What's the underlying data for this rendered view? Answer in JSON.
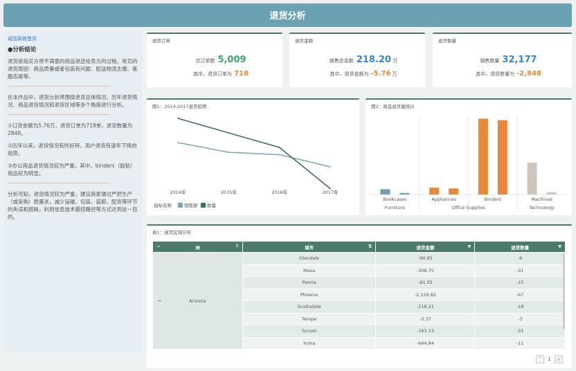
{
  "header": {
    "title": "退货分析"
  },
  "sidebar": {
    "back_link": "返回系统首页",
    "section_title": "●分析结论",
    "p1": "退货是指买方将不满意的商品退还给卖方的过程。常见的退货原因：商品质量或者包装有问题、配送物流太慢、客服态度等。",
    "p2": "在本作品中，退货分析将围绕退货总体情况、历年退货情况、商品退货情况和退货区域等多个角度进行分析。",
    "p3": "①订货金额为5.76万，退货订单为718单，退货数量为2848。",
    "p4": "②历年以来，退货情况有所好转，用户退货有逐年下降的趋势。",
    "p5": "③办公用品退货情况较为严重，其中，binders（胶粘）用品较为明显。",
    "p6": "分析可知，退货情况较为严重，建议商家通过严把生产（或采购）质量关，减少运输、包装、装卸、配货等环节的失误和损耗，利用信息技术最短路径等方式达到这一目的。"
  },
  "kpis": [
    {
      "title": "退货订单",
      "main_label": "总订单数",
      "main_value": "5,009",
      "main_color": "#3aa76d",
      "main_unit": "",
      "sub_label": "其中，退货订单为",
      "sub_value": "718",
      "sub_unit": ""
    },
    {
      "title": "退货金额",
      "main_label": "销售总金额",
      "main_value": "218.20",
      "main_color": "#3388cc",
      "main_unit": "万",
      "sub_label": "其中，退货金额为",
      "sub_value": "-5.76",
      "sub_unit": "万"
    },
    {
      "title": "退货数量",
      "main_label": "销售数量",
      "main_value": "32,177",
      "main_color": "#3388cc",
      "main_unit": "",
      "sub_label": "其中，退货数量为",
      "sub_value": "-2,848",
      "sub_unit": ""
    }
  ],
  "chart_data": [
    {
      "type": "line",
      "title": "图1：2014-2017退货趋势",
      "x": [
        "2014年",
        "2015年",
        "2016年",
        "2017年"
      ],
      "series": [
        {
          "name": "销售额",
          "values": [
            -1.2,
            -1.6,
            -1.7,
            -2.2
          ],
          "color": "#7aa6bb"
        },
        {
          "name": "数量",
          "values": [
            -0.2,
            -0.8,
            -1.4,
            -3.1
          ],
          "color": "#3f6e5a"
        }
      ],
      "legend_label": "指标名称",
      "legend_position": "bottom-left",
      "ylim": [
        -3.2,
        0
      ],
      "grid": false
    },
    {
      "type": "bar",
      "title": "图2：商品退货量统计",
      "groups": [
        {
          "label": "Furniture",
          "items": [
            {
              "label": "Bookcases",
              "bars": [
                {
                  "value": 0.7,
                  "color": "#6e9fb5"
                },
                {
                  "value": 0.2,
                  "color": "#6e9fb5"
                }
              ]
            }
          ]
        },
        {
          "label": "Office Supplies",
          "items": [
            {
              "label": "Appliances",
              "bars": [
                {
                  "value": 0.9,
                  "color": "#e8883a"
                },
                {
                  "value": 0.8,
                  "color": "#e8883a"
                }
              ]
            },
            {
              "label": "Binders",
              "bars": [
                {
                  "value": 10.0,
                  "color": "#e8883a"
                },
                {
                  "value": 9.8,
                  "color": "#e8883a"
                }
              ]
            }
          ]
        },
        {
          "label": "Technology",
          "items": [
            {
              "label": "Machines",
              "bars": [
                {
                  "value": 4.2,
                  "color": "#cfc6ba"
                },
                {
                  "value": 0.3,
                  "color": "#cfc6ba"
                }
              ]
            }
          ]
        }
      ],
      "ylim": [
        0,
        10.5
      ],
      "grid": false
    }
  ],
  "table": {
    "title": "表1：退货区域分布",
    "columns": [
      "洲",
      "城市",
      "退货金额",
      "退货数量"
    ],
    "state": "Arizona",
    "rows": [
      [
        "Glendale",
        "-90.85",
        "-6"
      ],
      [
        "Mesa",
        "-308.75",
        "-31"
      ],
      [
        "Peoria",
        "-81.55",
        "-15"
      ],
      [
        "Phoenix",
        "-2,159.82",
        "-67"
      ],
      [
        "Scottsdale",
        "-218.21",
        "-18"
      ],
      [
        "Tempe",
        "-3.37",
        "-3"
      ],
      [
        "Tucson",
        "-163.13",
        "-31"
      ],
      [
        "Yuma",
        "-644.84",
        "-11"
      ]
    ],
    "expand_symbol": "−",
    "page": "1"
  }
}
